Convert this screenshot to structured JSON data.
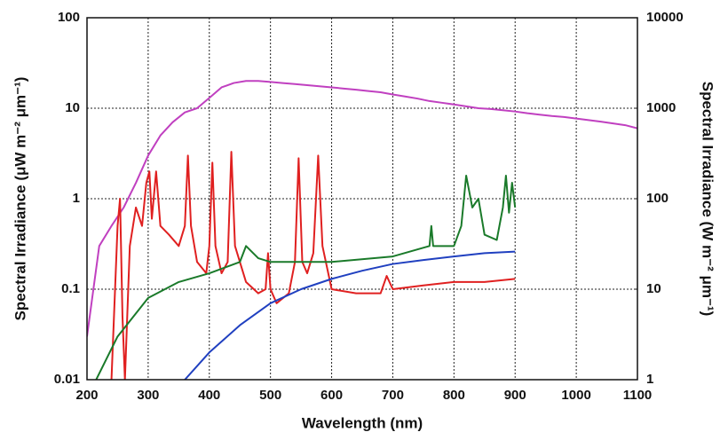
{
  "chart_data": {
    "type": "line",
    "xlabel": "Wavelength (nm)",
    "ylabel": "Spectral Irradiance (μW m⁻² μm⁻¹)",
    "y2label": "Spectral Irradiance (W m⁻² μm⁻¹)",
    "xlim": [
      200,
      1100
    ],
    "xticks": [
      200,
      300,
      400,
      500,
      600,
      700,
      800,
      900,
      1000,
      1100
    ],
    "ylim": [
      0.01,
      100
    ],
    "yticks": [
      0.01,
      0.1,
      1,
      10,
      100
    ],
    "ylog": true,
    "y2lim": [
      1,
      10000
    ],
    "y2ticks": [
      1,
      10,
      100,
      1000,
      10000
    ],
    "y2log": true,
    "grid": true,
    "series": [
      {
        "color": "#c040c0",
        "axis": "y2",
        "x": [
          200,
          220,
          240,
          260,
          280,
          300,
          320,
          340,
          360,
          380,
          400,
          420,
          440,
          460,
          480,
          500,
          520,
          540,
          560,
          580,
          600,
          620,
          640,
          660,
          680,
          700,
          720,
          740,
          760,
          780,
          800,
          820,
          840,
          860,
          880,
          900,
          920,
          940,
          960,
          980,
          1000,
          1020,
          1040,
          1060,
          1080,
          1100
        ],
        "values": [
          3,
          30,
          50,
          80,
          150,
          300,
          500,
          700,
          900,
          1000,
          1300,
          1700,
          1900,
          2000,
          2000,
          1950,
          1900,
          1850,
          1800,
          1750,
          1700,
          1650,
          1600,
          1550,
          1500,
          1420,
          1350,
          1280,
          1200,
          1150,
          1100,
          1050,
          1000,
          980,
          950,
          920,
          880,
          850,
          820,
          800,
          770,
          740,
          710,
          680,
          650,
          600
        ]
      },
      {
        "color": "#e02020",
        "x": [
          240,
          250,
          254,
          258,
          262,
          270,
          280,
          290,
          297,
          302,
          306,
          313,
          320,
          334,
          350,
          360,
          365,
          370,
          380,
          395,
          400,
          405,
          410,
          420,
          430,
          436,
          442,
          460,
          480,
          492,
          496,
          500,
          510,
          530,
          540,
          546,
          552,
          560,
          570,
          578,
          585,
          600,
          640,
          680,
          690,
          700,
          750,
          800,
          850,
          900
        ],
        "values": [
          0.01,
          0.5,
          1.0,
          0.05,
          0.01,
          0.3,
          0.8,
          0.5,
          1.5,
          2.0,
          0.6,
          2.0,
          0.5,
          0.4,
          0.3,
          0.5,
          3.0,
          0.5,
          0.2,
          0.15,
          0.3,
          2.5,
          0.3,
          0.15,
          0.2,
          3.3,
          0.3,
          0.12,
          0.09,
          0.1,
          0.25,
          0.1,
          0.07,
          0.09,
          0.2,
          2.8,
          0.2,
          0.15,
          0.25,
          3.0,
          0.3,
          0.1,
          0.09,
          0.09,
          0.14,
          0.1,
          0.11,
          0.12,
          0.12,
          0.13
        ]
      },
      {
        "color": "#1a7a2a",
        "x": [
          215,
          250,
          300,
          350,
          400,
          450,
          460,
          480,
          500,
          600,
          700,
          760,
          763,
          766,
          800,
          812,
          820,
          830,
          840,
          850,
          870,
          880,
          885,
          890,
          895,
          900
        ],
        "values": [
          0.01,
          0.03,
          0.08,
          0.12,
          0.15,
          0.2,
          0.3,
          0.22,
          0.2,
          0.2,
          0.23,
          0.3,
          0.5,
          0.3,
          0.3,
          0.5,
          1.8,
          0.8,
          1.0,
          0.4,
          0.35,
          0.8,
          1.8,
          0.7,
          1.5,
          0.8
        ]
      },
      {
        "color": "#2040c0",
        "x": [
          360,
          400,
          450,
          500,
          550,
          600,
          650,
          700,
          750,
          800,
          850,
          900
        ],
        "values": [
          0.01,
          0.02,
          0.04,
          0.07,
          0.1,
          0.13,
          0.16,
          0.19,
          0.21,
          0.23,
          0.25,
          0.26
        ]
      }
    ]
  }
}
